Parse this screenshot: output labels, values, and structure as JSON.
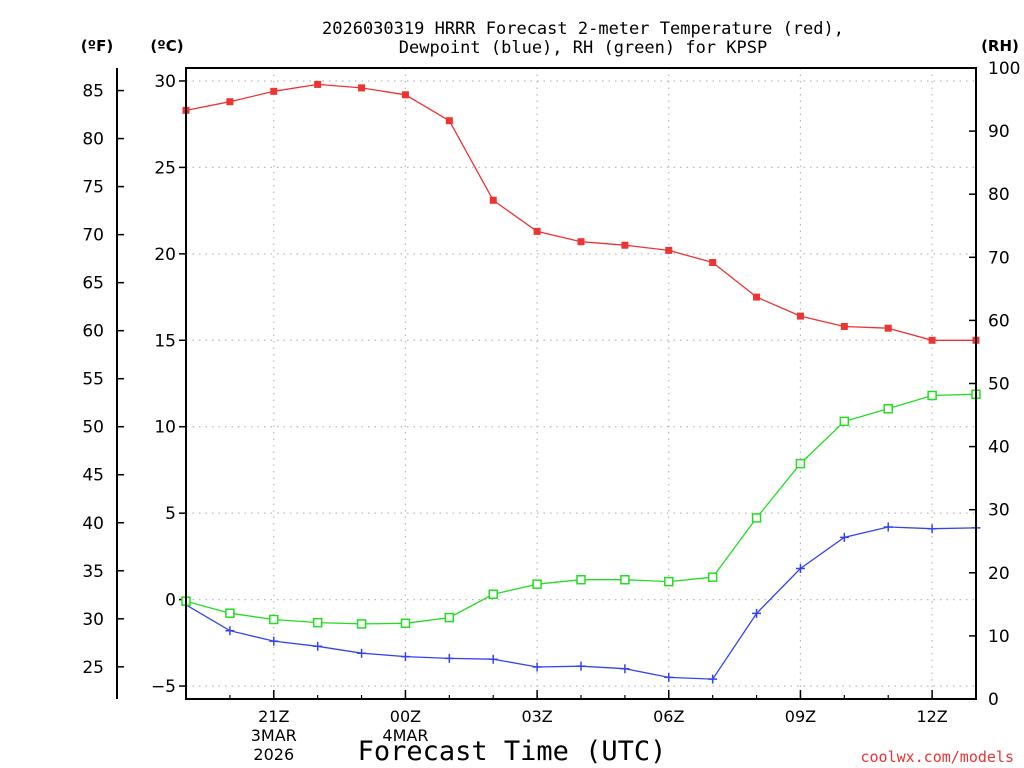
{
  "chart_data": {
    "type": "line",
    "title_line1": "2026030319 HRRR Forecast 2-meter Temperature (red),",
    "title_line2": "Dewpoint (blue), RH (green) for KPSP",
    "xlabel": "Forecast Time (UTC)",
    "watermark": "coolwx.com/models",
    "unit_f": "(ºF)",
    "unit_c": "(ºC)",
    "unit_rh": "(RH)",
    "hours": [
      0,
      1,
      2,
      3,
      4,
      5,
      6,
      7,
      8,
      9,
      10,
      11,
      12,
      13,
      14,
      15,
      16,
      17,
      18
    ],
    "c_axis": {
      "range": [
        -5.75,
        30.75
      ],
      "ticks": [
        -5,
        0,
        5,
        10,
        15,
        20,
        25,
        30
      ],
      "tick_labels": [
        "−5",
        "0",
        "5",
        "10",
        "15",
        "20",
        "25",
        "30"
      ]
    },
    "f_axis": {
      "ticks": [
        25,
        30,
        35,
        40,
        45,
        50,
        55,
        60,
        65,
        70,
        75,
        80,
        85
      ]
    },
    "rh_axis": {
      "range": [
        0,
        100
      ],
      "ticks": [
        0,
        10,
        20,
        30,
        40,
        50,
        60,
        70,
        80,
        90,
        100
      ]
    },
    "x_ticks": [
      {
        "hour": 2,
        "label": "21Z",
        "sub1": "3MAR",
        "sub2": "2026"
      },
      {
        "hour": 5,
        "label": "00Z",
        "sub1": "4MAR",
        "sub2": ""
      },
      {
        "hour": 8,
        "label": "03Z",
        "sub1": "",
        "sub2": ""
      },
      {
        "hour": 11,
        "label": "06Z",
        "sub1": "",
        "sub2": ""
      },
      {
        "hour": 14,
        "label": "09Z",
        "sub1": "",
        "sub2": ""
      },
      {
        "hour": 17,
        "label": "12Z",
        "sub1": "",
        "sub2": ""
      }
    ],
    "series": [
      {
        "name": "Temperature",
        "units": "C",
        "color": "#ee3333",
        "marker": "filled-square",
        "values": [
          28.3,
          28.8,
          29.4,
          29.8,
          29.6,
          29.2,
          27.7,
          23.1,
          21.3,
          20.7,
          20.5,
          20.2,
          19.5,
          17.5,
          16.4,
          15.8,
          15.7,
          15.0,
          15.0
        ]
      },
      {
        "name": "Dewpoint",
        "units": "C",
        "color": "#3344ee",
        "marker": "plus",
        "values": [
          -0.3,
          -1.8,
          -2.4,
          -2.7,
          -3.1,
          -3.3,
          -3.4,
          -3.45,
          -3.9,
          -3.85,
          -4.0,
          -4.5,
          -4.6,
          -0.8,
          1.8,
          3.6,
          4.2,
          4.1,
          4.15
        ]
      },
      {
        "name": "RH",
        "units": "%",
        "color": "#22dd22",
        "marker": "open-square",
        "values": [
          15.5,
          13.6,
          12.6,
          12.1,
          11.9,
          12.0,
          12.9,
          16.6,
          18.2,
          18.9,
          18.9,
          18.6,
          19.3,
          28.7,
          37.3,
          44.0,
          46.0,
          48.1,
          48.3
        ]
      }
    ]
  }
}
